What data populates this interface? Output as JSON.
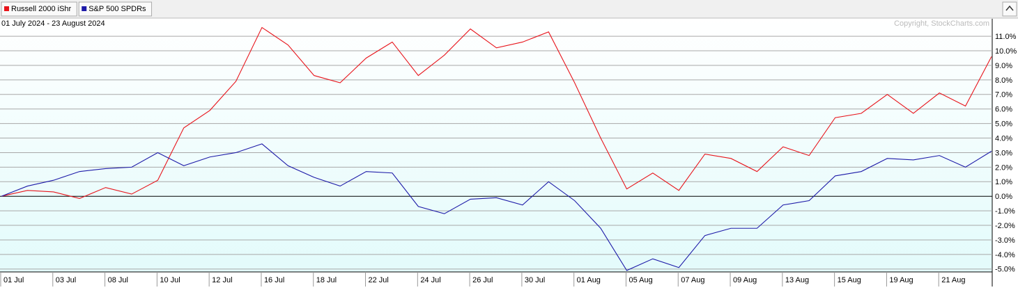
{
  "chart_data": {
    "type": "line",
    "title": "01 July 2024 - 23 August 2024",
    "copyright": "Copyright, StockCharts.com",
    "categories": [
      "01 Jul",
      null,
      "03 Jul",
      null,
      "08 Jul",
      null,
      "10 Jul",
      null,
      "12 Jul",
      null,
      "16 Jul",
      null,
      "18 Jul",
      null,
      "22 Jul",
      null,
      "24 Jul",
      null,
      "26 Jul",
      null,
      "30 Jul",
      null,
      "01 Aug",
      null,
      "05 Aug",
      null,
      "07 Aug",
      null,
      "09 Aug",
      null,
      "13 Aug",
      null,
      "15 Aug",
      null,
      "19 Aug",
      null,
      "21 Aug",
      null,
      null
    ],
    "series": [
      {
        "name": "Russell 2000 iShr",
        "color": "#e8141b",
        "values": [
          0,
          0.4,
          0.3,
          -0.15,
          0.6,
          0.15,
          1.1,
          4.7,
          5.9,
          7.9,
          11.6,
          10.4,
          8.3,
          7.8,
          9.5,
          10.6,
          8.3,
          9.7,
          11.5,
          10.2,
          10.6,
          11.3,
          7.8,
          4.0,
          0.5,
          1.6,
          0.4,
          2.9,
          2.6,
          1.7,
          3.4,
          2.8,
          5.4,
          5.7,
          7.0,
          5.7,
          7.1,
          6.2,
          9.6
        ]
      },
      {
        "name": "S&P 500 SPDRs",
        "color": "#1d1aa8",
        "values": [
          0,
          0.7,
          1.1,
          1.7,
          1.9,
          2.0,
          3.0,
          2.1,
          2.7,
          3.0,
          3.6,
          2.1,
          1.3,
          0.7,
          1.7,
          1.6,
          -0.7,
          -1.2,
          -0.2,
          -0.1,
          -0.6,
          1.0,
          -0.3,
          -2.2,
          -5.1,
          -4.3,
          -4.9,
          -2.7,
          -2.2,
          -2.2,
          -0.6,
          -0.3,
          1.4,
          1.7,
          2.6,
          2.5,
          2.8,
          2.0,
          3.1
        ]
      }
    ],
    "ylim": [
      -5.2,
      12.2
    ],
    "yticks": [
      {
        "value": -5,
        "label": "-5.0%"
      },
      {
        "value": -4,
        "label": "-4.0%"
      },
      {
        "value": -3,
        "label": "-3.0%"
      },
      {
        "value": -2,
        "label": "-2.0%"
      },
      {
        "value": -1,
        "label": "-1.0%"
      },
      {
        "value": 0,
        "label": "0.0%"
      },
      {
        "value": 1,
        "label": "1.0%"
      },
      {
        "value": 2,
        "label": "2.0%"
      },
      {
        "value": 3,
        "label": "3.0%"
      },
      {
        "value": 4,
        "label": "4.0%"
      },
      {
        "value": 5,
        "label": "5.0%"
      },
      {
        "value": 6,
        "label": "6.0%"
      },
      {
        "value": 7,
        "label": "7.0%"
      },
      {
        "value": 8,
        "label": "8.0%"
      },
      {
        "value": 9,
        "label": "9.0%"
      },
      {
        "value": 10,
        "label": "10.0%"
      },
      {
        "value": 11,
        "label": "11.0%"
      }
    ],
    "grid": true
  }
}
